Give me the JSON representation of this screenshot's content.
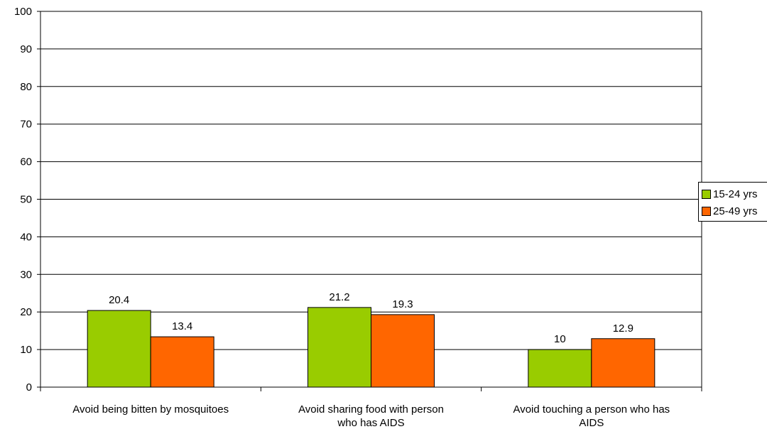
{
  "chart_data": {
    "type": "bar",
    "categories": [
      [
        "Avoid being bitten by mosquitoes"
      ],
      [
        "Avoid sharing food with person",
        "who has AIDS"
      ],
      [
        "Avoid touching a person who has",
        "AIDS"
      ]
    ],
    "series": [
      {
        "name": "15-24 yrs",
        "values": [
          20.4,
          21.2,
          10
        ],
        "color": "#99cc00"
      },
      {
        "name": "25-49 yrs",
        "values": [
          13.4,
          19.3,
          12.9
        ],
        "color": "#ff6600"
      }
    ],
    "data_labels": [
      [
        "20.4",
        "21.2",
        "10"
      ],
      [
        "13.4",
        "19.3",
        "12.9"
      ]
    ],
    "ylim": [
      0,
      100
    ],
    "yticks": [
      0,
      10,
      20,
      30,
      40,
      50,
      60,
      70,
      80,
      90,
      100
    ],
    "grid": true,
    "legend_position": "right"
  }
}
